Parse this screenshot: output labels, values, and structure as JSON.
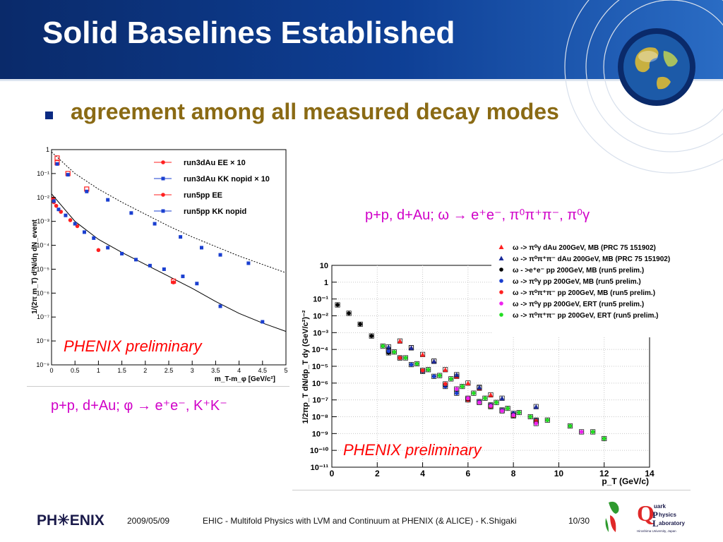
{
  "slide": {
    "title": "Solid Baselines Established",
    "bullet": "agreement among all measured decay modes",
    "caption_right": "p+p, d+Au;  ω → e⁺e⁻, π⁰π⁺π⁻, π⁰γ",
    "caption_left": "p+p, d+Au;  φ → e⁺e⁻, K⁺K⁻",
    "footer": {
      "logo": "PH✳ENIX",
      "date": "2009/05/09",
      "talk": "EHIC - Multifold Physics with LVM and Continuum at PHENIX (& ALICE) - K.Shigaki",
      "page": "10/30",
      "lab_lines": [
        "uark",
        "hysics",
        "aboratory",
        "Hiroshima University, Japan"
      ]
    }
  },
  "chart_data": [
    {
      "type": "scatter",
      "annotation": "PHENIX preliminary",
      "xlabel": "m_T-m_φ [GeV/c²]",
      "ylabel": "1/(2π m_T) d²N/dη dN_event",
      "xlim": [
        0,
        5
      ],
      "ylim_log10": [
        -9,
        0
      ],
      "yscale": "log",
      "xticks": [
        0,
        0.5,
        1,
        1.5,
        2,
        2.5,
        3,
        3.5,
        4,
        4.5,
        5
      ],
      "xtick_labels": [
        "0",
        "0.5",
        "1",
        "1.5",
        "2",
        "2.5",
        "3",
        "3.5",
        "4",
        "4.5",
        "5"
      ],
      "ytick_labels": [
        "10⁻⁹",
        "10⁻⁸",
        "10⁻⁷",
        "10⁻⁶",
        "10⁻⁵",
        "10⁻⁴",
        "10⁻³",
        "10⁻²",
        "10⁻¹",
        "1"
      ],
      "legend_position": "top-right",
      "series": [
        {
          "name": "run3dAu EE × 10",
          "color": "#ff2020",
          "marker": "open-square",
          "points": [
            [
              0.12,
              -0.35
            ],
            [
              0.12,
              -0.55
            ],
            [
              0.35,
              -1.0
            ],
            [
              0.75,
              -1.65
            ],
            [
              2.6,
              -5.5
            ]
          ]
        },
        {
          "name": "run3dAu KK nopid × 10",
          "color": "#1a3fd0",
          "marker": "square",
          "points": [
            [
              0.12,
              -0.6
            ],
            [
              0.35,
              -1.05
            ],
            [
              0.75,
              -1.75
            ],
            [
              1.2,
              -2.1
            ],
            [
              1.7,
              -2.65
            ],
            [
              2.2,
              -3.1
            ],
            [
              2.75,
              -3.65
            ],
            [
              3.2,
              -4.1
            ],
            [
              3.6,
              -4.4
            ],
            [
              4.2,
              -4.75
            ]
          ]
        },
        {
          "name": "run5pp EE",
          "color": "#ff2020",
          "marker": "dot",
          "points": [
            [
              0.03,
              -2.05
            ],
            [
              0.05,
              -2.2
            ],
            [
              0.1,
              -2.35
            ],
            [
              0.2,
              -2.6
            ],
            [
              0.4,
              -2.95
            ],
            [
              0.55,
              -3.2
            ],
            [
              1.0,
              -4.2
            ],
            [
              2.6,
              -5.55
            ]
          ]
        },
        {
          "name": "run5pp KK nopid",
          "color": "#1a3fd0",
          "marker": "square",
          "points": [
            [
              0.05,
              -2.15
            ],
            [
              0.15,
              -2.5
            ],
            [
              0.3,
              -2.75
            ],
            [
              0.5,
              -3.1
            ],
            [
              0.7,
              -3.45
            ],
            [
              0.9,
              -3.7
            ],
            [
              1.2,
              -4.1
            ],
            [
              1.5,
              -4.35
            ],
            [
              1.8,
              -4.6
            ],
            [
              2.1,
              -4.85
            ],
            [
              2.4,
              -5.0
            ],
            [
              2.8,
              -5.3
            ],
            [
              3.1,
              -5.6
            ],
            [
              3.6,
              -6.55
            ],
            [
              4.5,
              -7.2
            ]
          ]
        }
      ],
      "fits": [
        {
          "style": "dotted",
          "points": [
            [
              0.0,
              -0.1
            ],
            [
              0.5,
              -1.0
            ],
            [
              1.0,
              -1.65
            ],
            [
              1.5,
              -2.2
            ],
            [
              2.0,
              -2.7
            ],
            [
              2.5,
              -3.2
            ],
            [
              3.0,
              -3.65
            ],
            [
              3.5,
              -4.05
            ],
            [
              4.0,
              -4.45
            ],
            [
              4.5,
              -4.8
            ],
            [
              5.0,
              -5.15
            ]
          ]
        },
        {
          "style": "solid",
          "points": [
            [
              0.0,
              -1.85
            ],
            [
              0.5,
              -3.0
            ],
            [
              1.0,
              -3.75
            ],
            [
              1.5,
              -4.3
            ],
            [
              2.0,
              -4.8
            ],
            [
              2.5,
              -5.3
            ],
            [
              3.0,
              -5.8
            ],
            [
              3.5,
              -6.35
            ],
            [
              4.0,
              -6.85
            ],
            [
              4.5,
              -7.25
            ],
            [
              5.0,
              -7.6
            ]
          ]
        }
      ]
    },
    {
      "type": "scatter",
      "annotation": "PHENIX preliminary",
      "xlabel": "p_T (GeV/c)",
      "ylabel": "1/2πp_T dN/dp_T dy (GeV/c²)⁻²",
      "xlim": [
        0,
        14
      ],
      "ylim_log10": [
        -11,
        1
      ],
      "yscale": "log",
      "xticks": [
        0,
        2,
        4,
        6,
        8,
        10,
        12,
        14
      ],
      "ytick_labels": [
        "10⁻¹¹",
        "10⁻¹⁰",
        "10⁻⁹",
        "10⁻⁸",
        "10⁻⁷",
        "10⁻⁶",
        "10⁻⁵",
        "10⁻⁴",
        "10⁻³",
        "10⁻²",
        "10⁻¹",
        "1",
        "10"
      ],
      "legend_position": "top-right",
      "series": [
        {
          "name": "ω -> π⁰γ dAu 200GeV, MB (PRC 75 151902)",
          "color": "#ff2020",
          "marker": "triangle",
          "points": [
            [
              2.5,
              -4.0
            ],
            [
              3.0,
              -3.5
            ],
            [
              3.5,
              -3.9
            ],
            [
              4.0,
              -4.3
            ],
            [
              4.5,
              -4.7
            ],
            [
              5.0,
              -5.2
            ],
            [
              5.5,
              -5.6
            ],
            [
              6.0,
              -6.0
            ],
            [
              6.5,
              -6.3
            ],
            [
              7.0,
              -6.7
            ]
          ]
        },
        {
          "name": "ω -> π⁰π⁺π⁻ dAu 200GeV, MB (PRC 75 151902)",
          "color": "#1a2a9a",
          "marker": "triangle",
          "points": [
            [
              2.5,
              -3.85
            ],
            [
              3.5,
              -3.9
            ],
            [
              4.5,
              -4.7
            ],
            [
              5.5,
              -5.5
            ],
            [
              6.5,
              -6.25
            ],
            [
              7.5,
              -6.9
            ],
            [
              9.0,
              -7.4
            ]
          ]
        },
        {
          "name": "ω - >e⁺e⁻ pp  200GeV, MB (run5 prelim.)",
          "color": "#000000",
          "marker": "dot",
          "points": [
            [
              0.25,
              -1.35
            ],
            [
              0.75,
              -1.85
            ],
            [
              1.25,
              -2.5
            ],
            [
              1.75,
              -3.2
            ],
            [
              2.5,
              -4.2
            ]
          ]
        },
        {
          "name": "ω -> π⁰γ  pp  200GeV, MB (run5 prelim.)",
          "color": "#1a3fd0",
          "marker": "dot",
          "points": [
            [
              2.5,
              -4.1
            ],
            [
              3.0,
              -4.5
            ],
            [
              3.5,
              -4.9
            ],
            [
              4.0,
              -5.3
            ],
            [
              4.5,
              -5.6
            ],
            [
              5.0,
              -6.2
            ],
            [
              5.5,
              -6.6
            ],
            [
              6.0,
              -6.95
            ],
            [
              6.5,
              -7.1
            ],
            [
              7.0,
              -7.3
            ],
            [
              7.5,
              -7.6
            ],
            [
              8.0,
              -7.8
            ],
            [
              9.0,
              -8.2
            ]
          ]
        },
        {
          "name": "ω -> π⁰π⁺π⁻ pp  200GeV, MB (run5 prelim.)",
          "color": "#ff2020",
          "marker": "dot",
          "points": [
            [
              3.0,
              -4.5
            ],
            [
              4.0,
              -5.25
            ],
            [
              5.0,
              -6.05
            ],
            [
              6.0,
              -7.0
            ],
            [
              7.0,
              -7.4
            ],
            [
              8.0,
              -7.95
            ],
            [
              9.0,
              -8.25
            ]
          ]
        },
        {
          "name": "ω -> π⁰γ  pp  200GeV, ERT (run5 prelim.)",
          "color": "#ee22ee",
          "marker": "dot",
          "points": [
            [
              5.5,
              -6.35
            ],
            [
              6.0,
              -6.9
            ],
            [
              6.5,
              -7.15
            ],
            [
              7.0,
              -7.35
            ],
            [
              7.5,
              -7.65
            ],
            [
              8.0,
              -7.9
            ],
            [
              9.0,
              -8.4
            ],
            [
              11.0,
              -8.9
            ]
          ]
        },
        {
          "name": "ω -> π⁰π⁺π⁻ pp  200GeV, ERT (run5 prelim.)",
          "color": "#22dd22",
          "marker": "dot",
          "points": [
            [
              2.25,
              -3.8
            ],
            [
              2.75,
              -4.15
            ],
            [
              3.25,
              -4.5
            ],
            [
              3.75,
              -4.85
            ],
            [
              4.25,
              -5.2
            ],
            [
              4.75,
              -5.55
            ],
            [
              5.25,
              -5.75
            ],
            [
              5.75,
              -6.2
            ],
            [
              6.25,
              -6.6
            ],
            [
              6.75,
              -6.9
            ],
            [
              7.25,
              -7.15
            ],
            [
              7.75,
              -7.5
            ],
            [
              8.25,
              -7.75
            ],
            [
              8.75,
              -8.0
            ],
            [
              9.5,
              -8.2
            ],
            [
              10.5,
              -8.55
            ],
            [
              11.5,
              -8.9
            ],
            [
              12.0,
              -9.3
            ]
          ]
        }
      ]
    }
  ]
}
